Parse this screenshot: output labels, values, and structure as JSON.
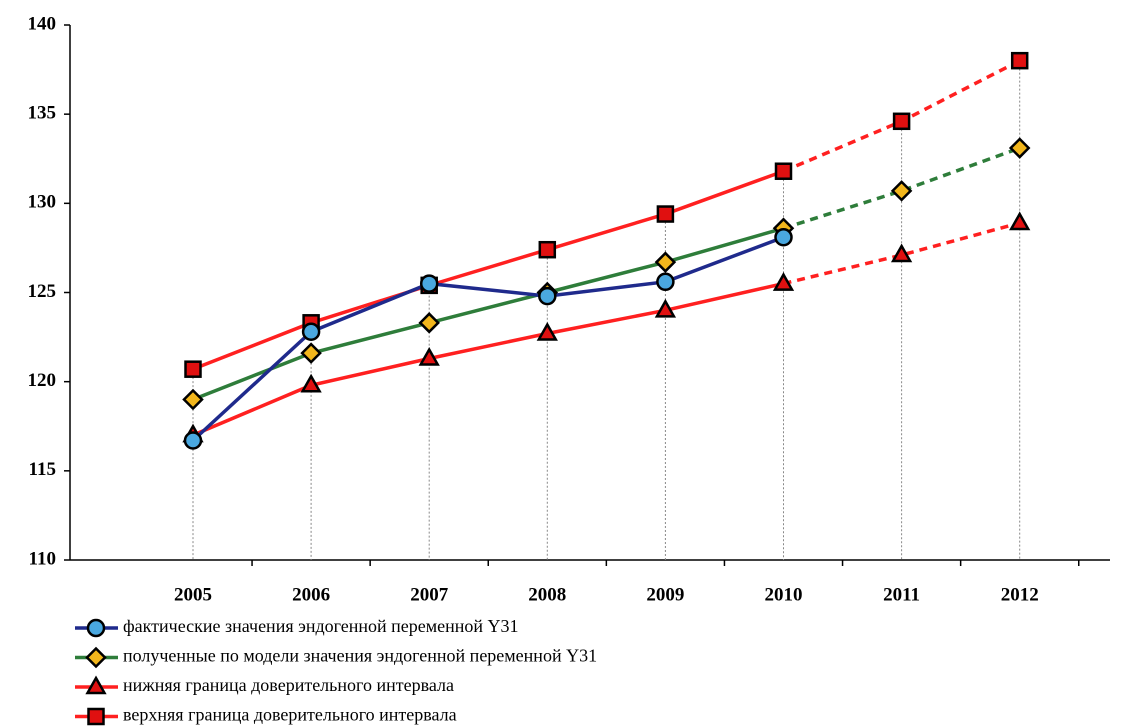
{
  "chart_data": {
    "type": "line",
    "categories": [
      "2005",
      "2006",
      "2007",
      "2008",
      "2009",
      "2010",
      "2011",
      "2012"
    ],
    "series": [
      {
        "name": "фактические значения эндогенной переменной Y31",
        "color": "#1f2a8c",
        "marker": "circle",
        "marker_color": "#4aa8e0",
        "values": [
          116.7,
          122.8,
          125.5,
          124.8,
          125.6,
          128.1,
          null,
          null
        ]
      },
      {
        "name": "полученные по модели значения эндогенной переменной Y31",
        "color": "#2e7d3a",
        "marker": "diamond",
        "marker_color": "#f2b61c",
        "values": [
          119.0,
          121.6,
          123.3,
          125.0,
          126.7,
          128.6,
          130.7,
          133.1
        ]
      },
      {
        "name": "нижняя граница доверительного интервала",
        "color": "#ff2020",
        "marker": "triangle",
        "marker_color": "#e01010",
        "values": [
          117.0,
          119.8,
          121.3,
          122.7,
          124.0,
          125.5,
          127.1,
          128.9
        ]
      },
      {
        "name": "верхняя граница доверительного интервала",
        "color": "#ff2020",
        "marker": "square",
        "marker_color": "#e01010",
        "values": [
          120.7,
          123.3,
          125.4,
          127.4,
          129.4,
          131.8,
          134.6,
          138.0
        ]
      }
    ],
    "dashed_from": "2010",
    "ylim": [
      110,
      140
    ],
    "yticks": [
      110,
      115,
      120,
      125,
      130,
      135,
      140
    ],
    "drop_lines": true,
    "legend": "bottom-left"
  }
}
